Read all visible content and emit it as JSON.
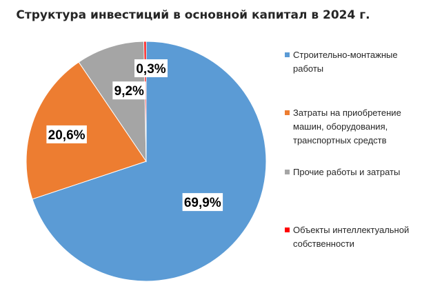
{
  "chart_data": {
    "type": "pie",
    "title": "Структура инвестиций в основной капитал в 2024 г.",
    "slices": [
      {
        "name": "Строительно-монтажные работы",
        "value": 69.9,
        "label": "69,9%",
        "color": "#5b9bd5"
      },
      {
        "name": "Затраты на приобретение машин, оборудования, транспортных средств",
        "value": 20.6,
        "label": "20,6%",
        "color": "#ed7d31"
      },
      {
        "name": "Прочие работы и затраты",
        "value": 9.2,
        "label": "9,2%",
        "color": "#a5a5a5"
      },
      {
        "name": "Объекты интеллектуальной собственности",
        "value": 0.3,
        "label": "0,3%",
        "color": "#ff0000"
      }
    ],
    "legend": {
      "position": "right",
      "entries": [
        "Строительно-монтажные\nработы",
        "Затраты  на приобретение\nмашин,  оборудования,\nтранспортных  средств",
        "Прочие  работы  и  затраты",
        "Объекты  интеллектуальной\nсобственности"
      ]
    }
  }
}
